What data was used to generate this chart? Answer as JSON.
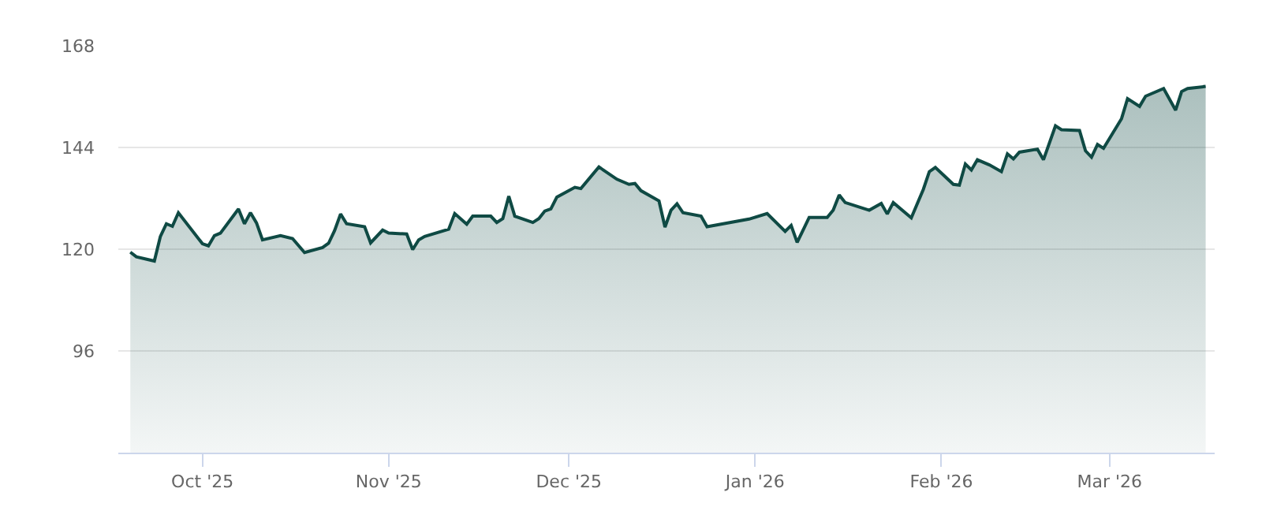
{
  "chart_data": {
    "type": "area",
    "x": [
      "2025-09-19",
      "2025-09-20",
      "2025-09-23",
      "2025-09-24",
      "2025-09-25",
      "2025-09-26",
      "2025-09-27",
      "2025-10-01",
      "2025-10-02",
      "2025-10-03",
      "2025-10-04",
      "2025-10-07",
      "2025-10-08",
      "2025-10-09",
      "2025-10-10",
      "2025-10-11",
      "2025-10-14",
      "2025-10-16",
      "2025-10-18",
      "2025-10-21",
      "2025-10-22",
      "2025-10-23",
      "2025-10-24",
      "2025-10-25",
      "2025-10-28",
      "2025-10-29",
      "2025-10-31",
      "2025-11-01",
      "2025-11-04",
      "2025-11-05",
      "2025-11-06",
      "2025-11-07",
      "2025-11-11",
      "2025-11-12",
      "2025-11-14",
      "2025-11-15",
      "2025-11-18",
      "2025-11-19",
      "2025-11-20",
      "2025-11-21",
      "2025-11-22",
      "2025-11-25",
      "2025-11-26",
      "2025-11-27",
      "2025-11-28",
      "2025-11-29",
      "2025-12-02",
      "2025-12-03",
      "2025-12-06",
      "2025-12-09",
      "2025-12-11",
      "2025-12-12",
      "2025-12-13",
      "2025-12-16",
      "2025-12-17",
      "2025-12-18",
      "2025-12-19",
      "2025-12-20",
      "2025-12-23",
      "2025-12-24",
      "2025-12-31",
      "2026-01-03",
      "2026-01-06",
      "2026-01-07",
      "2026-01-08",
      "2026-01-10",
      "2026-01-13",
      "2026-01-14",
      "2026-01-15",
      "2026-01-16",
      "2026-01-20",
      "2026-01-22",
      "2026-01-23",
      "2026-01-24",
      "2026-01-27",
      "2026-01-29",
      "2026-01-30",
      "2026-01-31",
      "2026-02-03",
      "2026-02-04",
      "2026-02-05",
      "2026-02-06",
      "2026-02-07",
      "2026-02-09",
      "2026-02-11",
      "2026-02-12",
      "2026-02-13",
      "2026-02-14",
      "2026-02-17",
      "2026-02-18",
      "2026-02-20",
      "2026-02-21",
      "2026-02-24",
      "2026-02-25",
      "2026-02-26",
      "2026-02-27",
      "2026-02-28",
      "2026-03-03",
      "2026-03-04",
      "2026-03-06",
      "2026-03-07",
      "2026-03-10",
      "2026-03-12",
      "2026-03-13",
      "2026-03-14",
      "2026-03-17"
    ],
    "series": [
      {
        "color": "#0f4a44",
        "values": [
          119.3,
          118.2,
          117.2,
          123.0,
          126.0,
          125.4,
          128.6,
          121.3,
          120.8,
          123.2,
          123.8,
          129.5,
          126.0,
          128.6,
          126.2,
          122.2,
          123.2,
          122.5,
          119.2,
          120.4,
          121.4,
          124.4,
          128.3,
          126.0,
          125.3,
          121.5,
          124.5,
          123.8,
          123.6,
          119.9,
          122.2,
          123.0,
          124.7,
          128.4,
          125.9,
          127.8,
          127.8,
          126.3,
          127.2,
          132.5,
          127.8,
          126.3,
          127.2,
          129.0,
          129.5,
          132.3,
          134.6,
          134.3,
          139.4,
          136.5,
          135.3,
          135.5,
          133.8,
          131.4,
          125.2,
          129.2,
          130.7,
          128.6,
          127.8,
          125.3,
          127.1,
          128.4,
          124.2,
          125.6,
          121.6,
          127.5,
          127.5,
          129.2,
          132.8,
          131.0,
          129.2,
          130.8,
          128.3,
          131.0,
          127.4,
          134.1,
          138.3,
          139.3,
          135.3,
          135.1,
          140.1,
          138.7,
          141.1,
          139.9,
          138.3,
          142.5,
          141.3,
          142.9,
          143.6,
          141.1,
          149.1,
          148.2,
          148.0,
          143.2,
          141.7,
          144.7,
          143.8,
          150.8,
          155.5,
          153.7,
          156.1,
          157.9,
          152.8,
          157.2,
          157.9,
          158.4
        ]
      }
    ],
    "xlim": [
      "2025-09-17",
      "2026-03-18T12:00"
    ],
    "xticks": [
      {
        "value": "2025-10-01",
        "label": "Oct '25"
      },
      {
        "value": "2025-11-01",
        "label": "Nov '25"
      },
      {
        "value": "2025-12-01",
        "label": "Dec '25"
      },
      {
        "value": "2026-01-01",
        "label": "Jan '26"
      },
      {
        "value": "2026-02-01",
        "label": "Feb '26"
      },
      {
        "value": "2026-03-01",
        "label": "Mar '26"
      }
    ],
    "ylim": [
      72,
      168
    ],
    "yticks": [
      96,
      120,
      144,
      168
    ],
    "grid": "y"
  }
}
